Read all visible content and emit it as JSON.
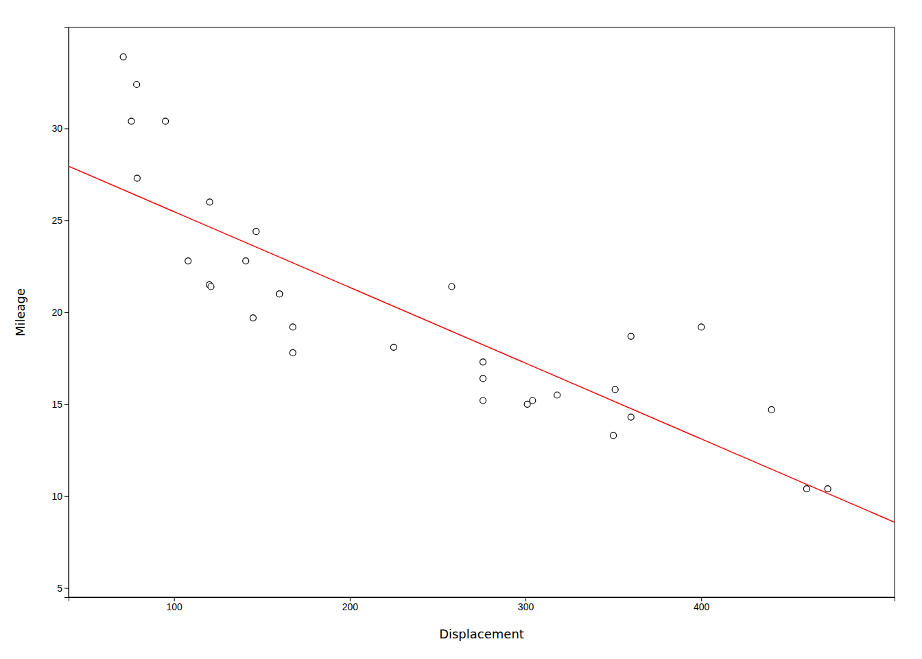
{
  "chart_data": {
    "type": "scatter",
    "xlabel": "Displacement",
    "ylabel": "Mileage",
    "xlim": [
      40,
      510
    ],
    "ylim": [
      4.5,
      35.5
    ],
    "xticks": [
      100,
      200,
      300,
      400
    ],
    "yticks": [
      5,
      10,
      15,
      20,
      25,
      30
    ],
    "grid": false,
    "series": [
      {
        "type": "scatter",
        "color": "black",
        "marker": "open-circle",
        "x": [
          160.0,
          160.0,
          108.0,
          258.0,
          360.0,
          225.0,
          360.0,
          146.7,
          140.8,
          167.6,
          167.6,
          275.8,
          275.8,
          275.8,
          472.0,
          460.0,
          440.0,
          78.7,
          75.7,
          71.1,
          120.1,
          318.0,
          304.0,
          350.0,
          400.0,
          79.0,
          120.3,
          95.1,
          351.0,
          145.0,
          301.0,
          121.0
        ],
        "values": [
          21.0,
          21.0,
          22.8,
          21.4,
          18.7,
          18.1,
          14.3,
          24.4,
          22.8,
          19.2,
          17.8,
          16.4,
          17.3,
          15.2,
          10.4,
          10.4,
          14.7,
          32.4,
          30.4,
          33.9,
          21.5,
          15.5,
          15.2,
          13.3,
          19.2,
          27.3,
          26.0,
          30.4,
          15.8,
          19.7,
          15.0,
          21.4
        ]
      },
      {
        "type": "line",
        "color": "red",
        "line_style": "solid",
        "x": [
          40,
          510
        ],
        "values": [
          27.9512,
          8.5801
        ]
      }
    ]
  }
}
